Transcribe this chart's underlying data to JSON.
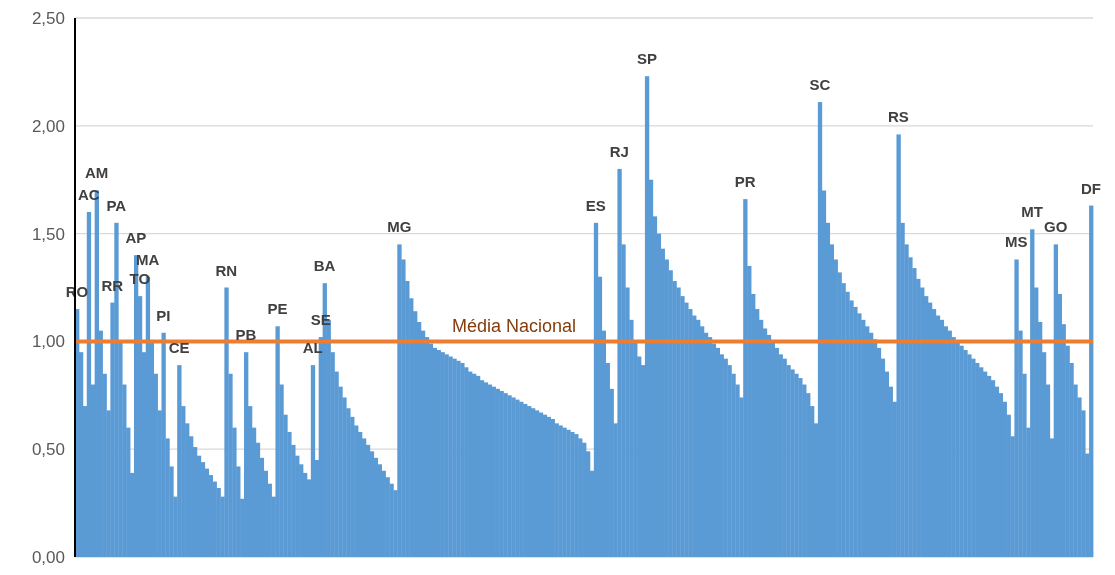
{
  "chart_data": {
    "type": "bar",
    "grid": "y",
    "ylim": [
      0,
      2.5
    ],
    "color": "#5b9bd5",
    "yticks": [
      {
        "value": 0,
        "label": "0,00"
      },
      {
        "value": 0.5,
        "label": "0,50"
      },
      {
        "value": 1,
        "label": "1,00"
      },
      {
        "value": 1.5,
        "label": "1,50"
      },
      {
        "value": 2,
        "label": "2,00"
      },
      {
        "value": 2.5,
        "label": "2,50"
      }
    ],
    "ref_lines": [
      {
        "axis": "y",
        "value": 1,
        "label": "Média Nacional",
        "color": "#ed7d31"
      }
    ],
    "categories": [
      "RO",
      null,
      null,
      "AC",
      null,
      "AM",
      null,
      null,
      null,
      "RR",
      "PA",
      null,
      null,
      null,
      null,
      "AP",
      "TO",
      null,
      "MA",
      null,
      null,
      null,
      "PI",
      null,
      null,
      null,
      "CE",
      null,
      null,
      null,
      null,
      null,
      null,
      null,
      null,
      null,
      null,
      null,
      "RN",
      null,
      null,
      null,
      null,
      "PB",
      null,
      null,
      null,
      null,
      null,
      null,
      null,
      "PE",
      null,
      null,
      null,
      null,
      null,
      null,
      null,
      null,
      "AL",
      null,
      "SE",
      "BA",
      null,
      null,
      null,
      null,
      null,
      null,
      null,
      null,
      null,
      null,
      null,
      null,
      null,
      null,
      null,
      null,
      null,
      null,
      "MG",
      null,
      null,
      null,
      null,
      null,
      null,
      null,
      null,
      null,
      null,
      null,
      null,
      null,
      null,
      null,
      null,
      null,
      null,
      null,
      null,
      null,
      null,
      null,
      null,
      null,
      null,
      null,
      null,
      null,
      null,
      null,
      null,
      null,
      null,
      null,
      null,
      null,
      null,
      null,
      null,
      null,
      null,
      null,
      null,
      null,
      null,
      null,
      null,
      null,
      "ES",
      null,
      null,
      null,
      null,
      null,
      "RJ",
      null,
      null,
      null,
      null,
      null,
      null,
      "SP",
      null,
      null,
      null,
      null,
      null,
      null,
      null,
      null,
      null,
      null,
      null,
      null,
      null,
      null,
      null,
      null,
      null,
      null,
      null,
      null,
      null,
      null,
      null,
      null,
      "PR",
      null,
      null,
      null,
      null,
      null,
      null,
      null,
      null,
      null,
      null,
      null,
      null,
      null,
      null,
      null,
      null,
      null,
      null,
      "SC",
      null,
      null,
      null,
      null,
      null,
      null,
      null,
      null,
      null,
      null,
      null,
      null,
      null,
      null,
      null,
      null,
      null,
      null,
      null,
      "RS",
      null,
      null,
      null,
      null,
      null,
      null,
      null,
      null,
      null,
      null,
      null,
      null,
      null,
      null,
      null,
      null,
      null,
      null,
      null,
      null,
      null,
      null,
      null,
      null,
      null,
      null,
      null,
      null,
      null,
      "MS",
      null,
      null,
      null,
      "MT",
      null,
      null,
      null,
      null,
      null,
      "GO",
      null,
      null,
      null,
      null,
      null,
      null,
      null,
      null,
      "DF"
    ],
    "values": [
      1.15,
      0.95,
      0.7,
      1.6,
      0.8,
      1.7,
      1.05,
      0.85,
      0.68,
      1.18,
      1.55,
      1.0,
      0.8,
      0.6,
      0.39,
      1.4,
      1.21,
      0.95,
      1.3,
      1.0,
      0.85,
      0.68,
      1.04,
      0.55,
      0.42,
      0.28,
      0.89,
      0.7,
      0.62,
      0.56,
      0.51,
      0.47,
      0.44,
      0.41,
      0.38,
      0.35,
      0.32,
      0.28,
      1.25,
      0.85,
      0.6,
      0.42,
      0.27,
      0.95,
      0.7,
      0.6,
      0.53,
      0.46,
      0.4,
      0.34,
      0.28,
      1.07,
      0.8,
      0.66,
      0.58,
      0.52,
      0.47,
      0.43,
      0.39,
      0.36,
      0.89,
      0.45,
      1.02,
      1.27,
      1.1,
      0.95,
      0.86,
      0.79,
      0.74,
      0.69,
      0.65,
      0.61,
      0.58,
      0.55,
      0.52,
      0.49,
      0.46,
      0.43,
      0.4,
      0.37,
      0.34,
      0.31,
      1.45,
      1.38,
      1.28,
      1.2,
      1.14,
      1.09,
      1.05,
      1.02,
      0.99,
      0.97,
      0.96,
      0.95,
      0.94,
      0.93,
      0.92,
      0.91,
      0.9,
      0.88,
      0.86,
      0.85,
      0.84,
      0.82,
      0.81,
      0.8,
      0.79,
      0.78,
      0.77,
      0.76,
      0.75,
      0.74,
      0.73,
      0.72,
      0.71,
      0.7,
      0.69,
      0.68,
      0.67,
      0.66,
      0.65,
      0.64,
      0.62,
      0.61,
      0.6,
      0.59,
      0.58,
      0.57,
      0.55,
      0.53,
      0.49,
      0.4,
      1.55,
      1.3,
      1.05,
      0.9,
      0.78,
      0.62,
      1.8,
      1.45,
      1.25,
      1.1,
      1.0,
      0.93,
      0.89,
      2.23,
      1.75,
      1.58,
      1.5,
      1.43,
      1.38,
      1.33,
      1.28,
      1.25,
      1.21,
      1.18,
      1.15,
      1.12,
      1.1,
      1.07,
      1.04,
      1.02,
      0.99,
      0.97,
      0.94,
      0.92,
      0.89,
      0.85,
      0.8,
      0.74,
      1.66,
      1.35,
      1.22,
      1.15,
      1.1,
      1.06,
      1.03,
      1.0,
      0.97,
      0.94,
      0.92,
      0.89,
      0.87,
      0.85,
      0.83,
      0.8,
      0.76,
      0.7,
      0.62,
      2.11,
      1.7,
      1.55,
      1.45,
      1.38,
      1.32,
      1.27,
      1.23,
      1.19,
      1.16,
      1.13,
      1.1,
      1.07,
      1.04,
      1.01,
      0.97,
      0.92,
      0.86,
      0.79,
      0.72,
      1.96,
      1.55,
      1.45,
      1.39,
      1.34,
      1.29,
      1.25,
      1.21,
      1.18,
      1.15,
      1.12,
      1.1,
      1.07,
      1.05,
      1.02,
      1.0,
      0.98,
      0.96,
      0.94,
      0.92,
      0.9,
      0.88,
      0.86,
      0.84,
      0.82,
      0.79,
      0.76,
      0.72,
      0.66,
      0.56,
      1.38,
      1.05,
      0.85,
      0.6,
      1.52,
      1.25,
      1.09,
      0.95,
      0.8,
      0.55,
      1.45,
      1.22,
      1.08,
      0.98,
      0.9,
      0.8,
      0.74,
      0.68,
      0.48,
      1.63
    ]
  }
}
